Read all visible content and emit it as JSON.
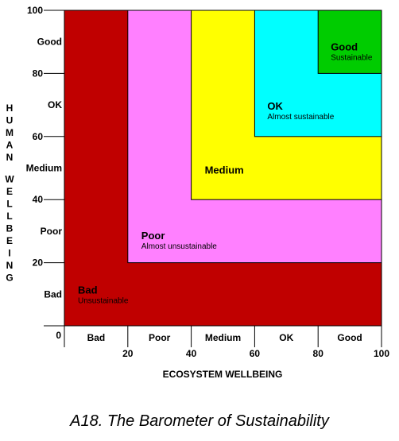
{
  "chart_data": {
    "type": "nested-region",
    "xlabel": "ECOSYSTEM WELLBEING",
    "ylabel": "HUMAN WELLBEING",
    "xlim": [
      0,
      100
    ],
    "ylim": [
      0,
      100
    ],
    "x_ticks": [
      20,
      40,
      60,
      80,
      100
    ],
    "y_ticks": [
      20,
      40,
      60,
      80,
      100
    ],
    "origin_label": "0",
    "x_band_labels": [
      "Bad",
      "Poor",
      "Medium",
      "OK",
      "Good"
    ],
    "y_band_labels": [
      "Bad",
      "Poor",
      "Medium",
      "OK",
      "Good"
    ],
    "zones": [
      {
        "title": "Bad",
        "subtitle": "Unsustainable",
        "min": 0,
        "color": "#c00000"
      },
      {
        "title": "Poor",
        "subtitle": "Almost unsustainable",
        "min": 20,
        "color": "#ff80ff"
      },
      {
        "title": "Medium",
        "subtitle": "",
        "min": 40,
        "color": "#ffff00"
      },
      {
        "title": "OK",
        "subtitle": "Almost sustainable",
        "min": 60,
        "color": "#00ffff"
      },
      {
        "title": "Good",
        "subtitle": "Sustainable",
        "min": 80,
        "color": "#00cc00"
      }
    ]
  },
  "caption": "A18. The Barometer of Sustainability"
}
